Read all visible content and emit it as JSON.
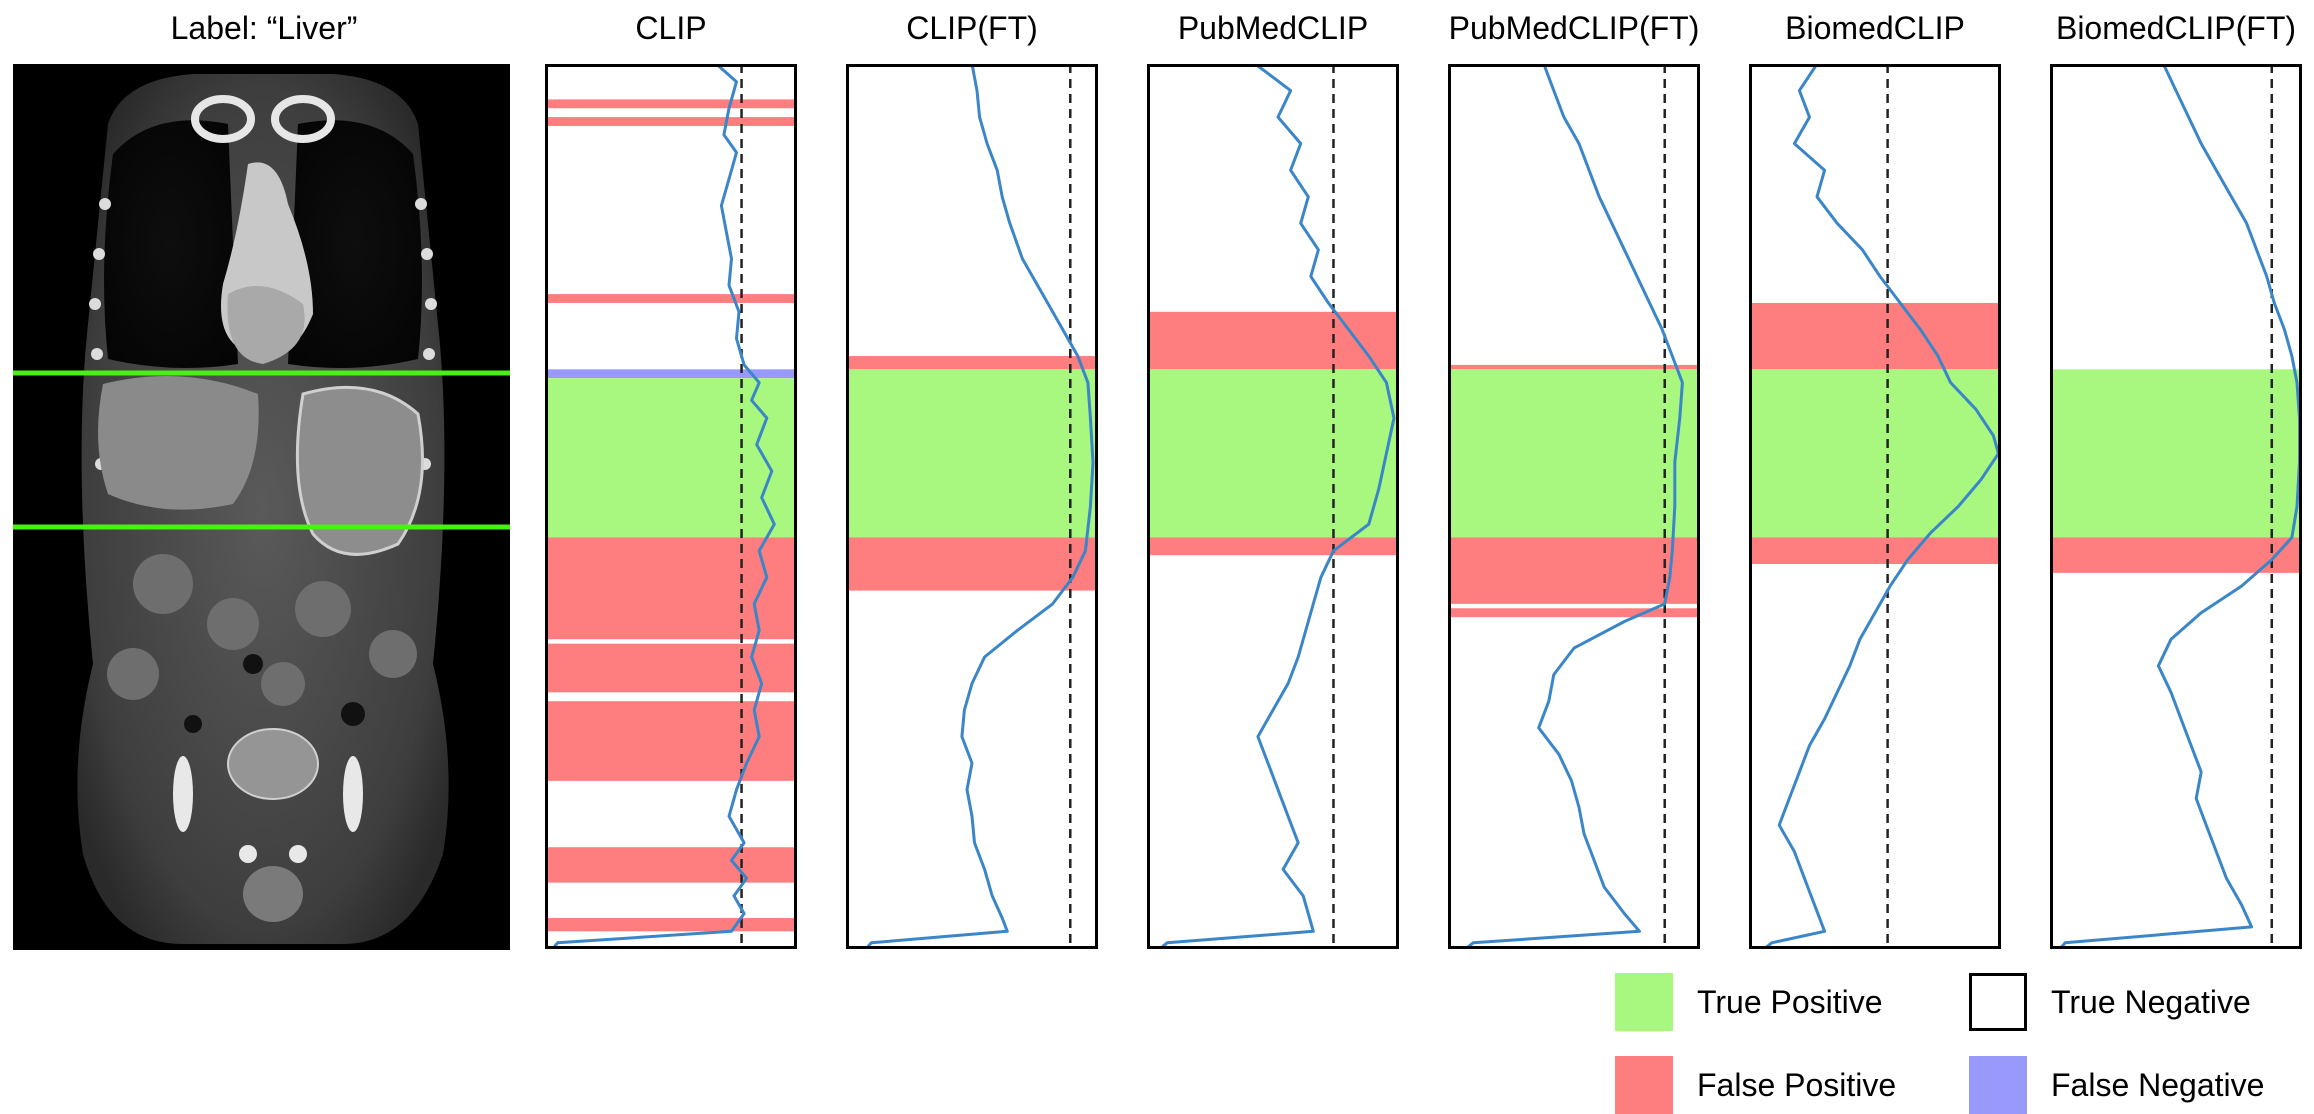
{
  "scan_label": "Label:  “Liver”",
  "legend": {
    "tp": {
      "label": "True Positive",
      "color": "#a8f77f"
    },
    "tn": {
      "label": "True Negative",
      "color": "#ffffff"
    },
    "fp": {
      "label": "False Positive",
      "color": "#fe7d7f"
    },
    "fn": {
      "label": "False Negative",
      "color": "#9999fb"
    }
  },
  "chart_data": [
    {
      "type": "line",
      "title": "CLIP",
      "threshold": 0.78,
      "regions": [
        {
          "label": "fp",
          "start": 0.04,
          "end": 0.05
        },
        {
          "label": "fp",
          "start": 0.06,
          "end": 0.07
        },
        {
          "label": "fp",
          "start": 0.26,
          "end": 0.27
        },
        {
          "label": "fn",
          "start": 0.345,
          "end": 0.355
        },
        {
          "label": "tp",
          "start": 0.355,
          "end": 0.535
        },
        {
          "label": "fp",
          "start": 0.535,
          "end": 0.65
        },
        {
          "label": "fp",
          "start": 0.655,
          "end": 0.71
        },
        {
          "label": "fp",
          "start": 0.72,
          "end": 0.81
        },
        {
          "label": "fp",
          "start": 0.885,
          "end": 0.925
        },
        {
          "label": "fp",
          "start": 0.965,
          "end": 0.98
        }
      ],
      "series": [
        [
          0,
          0.68
        ],
        [
          0.02,
          0.76
        ],
        [
          0.05,
          0.73
        ],
        [
          0.08,
          0.71
        ],
        [
          0.1,
          0.76
        ],
        [
          0.13,
          0.73
        ],
        [
          0.16,
          0.7
        ],
        [
          0.19,
          0.72
        ],
        [
          0.22,
          0.74
        ],
        [
          0.25,
          0.73
        ],
        [
          0.28,
          0.77
        ],
        [
          0.31,
          0.76
        ],
        [
          0.34,
          0.79
        ],
        [
          0.36,
          0.85
        ],
        [
          0.38,
          0.82
        ],
        [
          0.4,
          0.88
        ],
        [
          0.43,
          0.84
        ],
        [
          0.46,
          0.9
        ],
        [
          0.49,
          0.86
        ],
        [
          0.52,
          0.91
        ],
        [
          0.55,
          0.85
        ],
        [
          0.58,
          0.88
        ],
        [
          0.61,
          0.83
        ],
        [
          0.64,
          0.85
        ],
        [
          0.67,
          0.82
        ],
        [
          0.7,
          0.86
        ],
        [
          0.73,
          0.83
        ],
        [
          0.76,
          0.85
        ],
        [
          0.79,
          0.8
        ],
        [
          0.82,
          0.76
        ],
        [
          0.85,
          0.73
        ],
        [
          0.88,
          0.79
        ],
        [
          0.9,
          0.74
        ],
        [
          0.92,
          0.8
        ],
        [
          0.94,
          0.75
        ],
        [
          0.96,
          0.79
        ],
        [
          0.98,
          0.74
        ],
        [
          0.993,
          0.05
        ],
        [
          1,
          0.03
        ]
      ]
    },
    {
      "type": "line",
      "title": "CLIP(FT)",
      "threshold": 0.89,
      "regions": [
        {
          "label": "fp",
          "start": 0.33,
          "end": 0.345
        },
        {
          "label": "tp",
          "start": 0.345,
          "end": 0.535
        },
        {
          "label": "fp",
          "start": 0.535,
          "end": 0.595
        }
      ],
      "series": [
        [
          0,
          0.5
        ],
        [
          0.03,
          0.52
        ],
        [
          0.06,
          0.53
        ],
        [
          0.09,
          0.56
        ],
        [
          0.12,
          0.6
        ],
        [
          0.15,
          0.62
        ],
        [
          0.18,
          0.65
        ],
        [
          0.22,
          0.7
        ],
        [
          0.26,
          0.78
        ],
        [
          0.3,
          0.86
        ],
        [
          0.33,
          0.92
        ],
        [
          0.36,
          0.96
        ],
        [
          0.4,
          0.97
        ],
        [
          0.45,
          0.98
        ],
        [
          0.5,
          0.97
        ],
        [
          0.55,
          0.95
        ],
        [
          0.58,
          0.9
        ],
        [
          0.61,
          0.82
        ],
        [
          0.64,
          0.68
        ],
        [
          0.67,
          0.55
        ],
        [
          0.7,
          0.5
        ],
        [
          0.73,
          0.47
        ],
        [
          0.76,
          0.46
        ],
        [
          0.79,
          0.5
        ],
        [
          0.82,
          0.48
        ],
        [
          0.85,
          0.5
        ],
        [
          0.88,
          0.51
        ],
        [
          0.91,
          0.55
        ],
        [
          0.94,
          0.58
        ],
        [
          0.965,
          0.62
        ],
        [
          0.98,
          0.64
        ],
        [
          0.993,
          0.1
        ],
        [
          1,
          0.08
        ]
      ]
    },
    {
      "type": "line",
      "title": "PubMedCLIP",
      "threshold": 0.74,
      "regions": [
        {
          "label": "fp",
          "start": 0.28,
          "end": 0.345
        },
        {
          "label": "tp",
          "start": 0.345,
          "end": 0.535
        },
        {
          "label": "fp",
          "start": 0.535,
          "end": 0.555
        }
      ],
      "series": [
        [
          0,
          0.43
        ],
        [
          0.03,
          0.57
        ],
        [
          0.06,
          0.52
        ],
        [
          0.09,
          0.61
        ],
        [
          0.12,
          0.57
        ],
        [
          0.15,
          0.64
        ],
        [
          0.18,
          0.61
        ],
        [
          0.21,
          0.68
        ],
        [
          0.24,
          0.65
        ],
        [
          0.27,
          0.72
        ],
        [
          0.3,
          0.8
        ],
        [
          0.33,
          0.88
        ],
        [
          0.36,
          0.95
        ],
        [
          0.4,
          0.98
        ],
        [
          0.44,
          0.95
        ],
        [
          0.48,
          0.92
        ],
        [
          0.52,
          0.88
        ],
        [
          0.55,
          0.74
        ],
        [
          0.58,
          0.69
        ],
        [
          0.61,
          0.66
        ],
        [
          0.64,
          0.63
        ],
        [
          0.67,
          0.6
        ],
        [
          0.7,
          0.56
        ],
        [
          0.73,
          0.5
        ],
        [
          0.76,
          0.44
        ],
        [
          0.79,
          0.48
        ],
        [
          0.82,
          0.52
        ],
        [
          0.85,
          0.56
        ],
        [
          0.88,
          0.6
        ],
        [
          0.91,
          0.54
        ],
        [
          0.94,
          0.62
        ],
        [
          0.96,
          0.64
        ],
        [
          0.98,
          0.66
        ],
        [
          0.993,
          0.08
        ],
        [
          1,
          0.05
        ]
      ]
    },
    {
      "type": "line",
      "title": "PubMedCLIP(FT)",
      "threshold": 0.86,
      "regions": [
        {
          "label": "fp",
          "start": 0.34,
          "end": 0.345
        },
        {
          "label": "tp",
          "start": 0.345,
          "end": 0.535
        },
        {
          "label": "fp",
          "start": 0.535,
          "end": 0.61
        },
        {
          "label": "fp",
          "start": 0.615,
          "end": 0.625
        }
      ],
      "series": [
        [
          0,
          0.38
        ],
        [
          0.03,
          0.42
        ],
        [
          0.06,
          0.46
        ],
        [
          0.09,
          0.52
        ],
        [
          0.12,
          0.56
        ],
        [
          0.15,
          0.6
        ],
        [
          0.18,
          0.65
        ],
        [
          0.21,
          0.7
        ],
        [
          0.24,
          0.75
        ],
        [
          0.27,
          0.8
        ],
        [
          0.3,
          0.85
        ],
        [
          0.33,
          0.89
        ],
        [
          0.36,
          0.93
        ],
        [
          0.4,
          0.92
        ],
        [
          0.45,
          0.9
        ],
        [
          0.5,
          0.9
        ],
        [
          0.55,
          0.89
        ],
        [
          0.58,
          0.88
        ],
        [
          0.61,
          0.86
        ],
        [
          0.63,
          0.7
        ],
        [
          0.66,
          0.5
        ],
        [
          0.69,
          0.42
        ],
        [
          0.72,
          0.4
        ],
        [
          0.75,
          0.36
        ],
        [
          0.78,
          0.44
        ],
        [
          0.81,
          0.49
        ],
        [
          0.84,
          0.52
        ],
        [
          0.87,
          0.54
        ],
        [
          0.9,
          0.58
        ],
        [
          0.93,
          0.62
        ],
        [
          0.96,
          0.7
        ],
        [
          0.98,
          0.76
        ],
        [
          0.993,
          0.1
        ],
        [
          1,
          0.07
        ]
      ]
    },
    {
      "type": "line",
      "title": "BiomedCLIP",
      "threshold": 0.55,
      "regions": [
        {
          "label": "fp",
          "start": 0.27,
          "end": 0.345
        },
        {
          "label": "tp",
          "start": 0.345,
          "end": 0.535
        },
        {
          "label": "fp",
          "start": 0.535,
          "end": 0.565
        }
      ],
      "series": [
        [
          0,
          0.27
        ],
        [
          0.03,
          0.2
        ],
        [
          0.06,
          0.24
        ],
        [
          0.09,
          0.18
        ],
        [
          0.12,
          0.3
        ],
        [
          0.15,
          0.27
        ],
        [
          0.18,
          0.35
        ],
        [
          0.21,
          0.45
        ],
        [
          0.24,
          0.52
        ],
        [
          0.27,
          0.6
        ],
        [
          0.3,
          0.68
        ],
        [
          0.33,
          0.75
        ],
        [
          0.36,
          0.8
        ],
        [
          0.39,
          0.9
        ],
        [
          0.42,
          0.97
        ],
        [
          0.44,
          0.99
        ],
        [
          0.47,
          0.92
        ],
        [
          0.5,
          0.83
        ],
        [
          0.53,
          0.72
        ],
        [
          0.56,
          0.63
        ],
        [
          0.59,
          0.56
        ],
        [
          0.62,
          0.5
        ],
        [
          0.65,
          0.44
        ],
        [
          0.68,
          0.4
        ],
        [
          0.71,
          0.35
        ],
        [
          0.74,
          0.3
        ],
        [
          0.77,
          0.24
        ],
        [
          0.8,
          0.2
        ],
        [
          0.83,
          0.16
        ],
        [
          0.86,
          0.12
        ],
        [
          0.89,
          0.18
        ],
        [
          0.92,
          0.22
        ],
        [
          0.95,
          0.26
        ],
        [
          0.98,
          0.3
        ],
        [
          0.993,
          0.09
        ],
        [
          1,
          0.06
        ]
      ]
    },
    {
      "type": "line",
      "title": "BiomedCLIP(FT)",
      "threshold": 0.88,
      "regions": [
        {
          "label": "tp",
          "start": 0.345,
          "end": 0.535
        },
        {
          "label": "fp",
          "start": 0.535,
          "end": 0.575
        }
      ],
      "series": [
        [
          0,
          0.45
        ],
        [
          0.03,
          0.5
        ],
        [
          0.06,
          0.55
        ],
        [
          0.09,
          0.6
        ],
        [
          0.12,
          0.66
        ],
        [
          0.15,
          0.72
        ],
        [
          0.18,
          0.78
        ],
        [
          0.21,
          0.82
        ],
        [
          0.24,
          0.86
        ],
        [
          0.27,
          0.89
        ],
        [
          0.3,
          0.93
        ],
        [
          0.33,
          0.96
        ],
        [
          0.36,
          0.98
        ],
        [
          0.4,
          0.99
        ],
        [
          0.45,
          0.99
        ],
        [
          0.5,
          0.98
        ],
        [
          0.535,
          0.96
        ],
        [
          0.56,
          0.88
        ],
        [
          0.59,
          0.76
        ],
        [
          0.62,
          0.6
        ],
        [
          0.65,
          0.48
        ],
        [
          0.68,
          0.43
        ],
        [
          0.71,
          0.48
        ],
        [
          0.74,
          0.52
        ],
        [
          0.77,
          0.56
        ],
        [
          0.8,
          0.6
        ],
        [
          0.83,
          0.58
        ],
        [
          0.86,
          0.62
        ],
        [
          0.89,
          0.66
        ],
        [
          0.92,
          0.7
        ],
        [
          0.95,
          0.76
        ],
        [
          0.975,
          0.8
        ],
        [
          0.993,
          0.06
        ],
        [
          1,
          0.04
        ]
      ]
    }
  ]
}
